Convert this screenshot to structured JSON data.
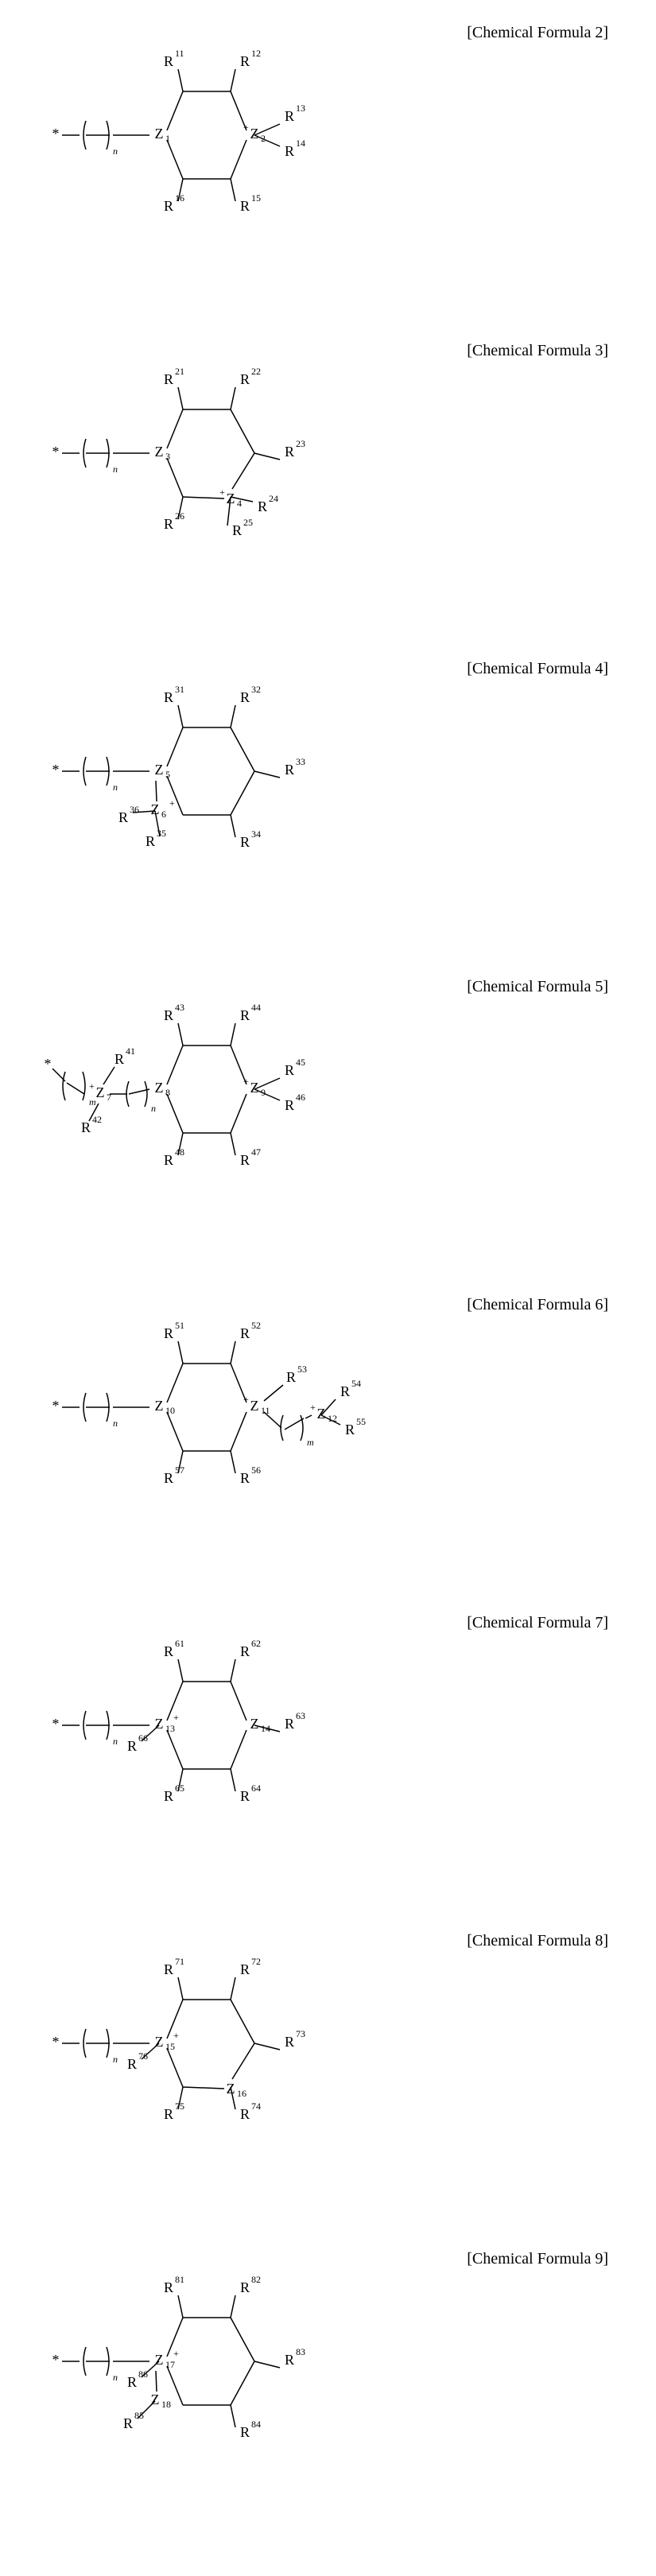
{
  "formulas": [
    {
      "label": "[Chemical Formula 2]",
      "ring": {
        "z_left": "Z",
        "z_left_sub": "1",
        "z_right": "Z",
        "z_right_sub": "2",
        "z_right_charge": "+",
        "charge_side": "left"
      },
      "chain": {
        "n": "n",
        "star": true
      },
      "r_top_left": "R",
      "r_top_left_sup": "11",
      "r_top_right": "R",
      "r_top_right_sup": "12",
      "r_right_upper": "R",
      "r_right_upper_sup": "13",
      "r_right_lower": "R",
      "r_right_lower_sup": "14",
      "r_bot_right": "R",
      "r_bot_right_sup": "15",
      "r_bot_left": "R",
      "r_bot_left_sup": "16",
      "variant": "A"
    },
    {
      "label": "[Chemical Formula 3]",
      "ring": {
        "z_left": "Z",
        "z_left_sub": "3",
        "z_bot": "Z",
        "z_bot_sub": "4",
        "z_bot_charge": "+"
      },
      "chain": {
        "n": "n",
        "star": true
      },
      "r_top_left": "R",
      "r_top_left_sup": "21",
      "r_top_right": "R",
      "r_top_right_sup": "22",
      "r_right": "R",
      "r_right_sup": "23",
      "r_bot_right1": "R",
      "r_bot_right1_sup": "24",
      "r_bot_right2": "R",
      "r_bot_right2_sup": "25",
      "r_bot_left": "R",
      "r_bot_left_sup": "26",
      "variant": "B"
    },
    {
      "label": "[Chemical Formula 4]",
      "ring": {
        "z_left": "Z",
        "z_left_sub": "5",
        "z_ext": "Z",
        "z_ext_sub": "6",
        "z_ext_charge": "+"
      },
      "chain": {
        "n": "n",
        "star": true
      },
      "r_top_left": "R",
      "r_top_left_sup": "31",
      "r_top_right": "R",
      "r_top_right_sup": "32",
      "r_right": "R",
      "r_right_sup": "33",
      "r_bot_right": "R",
      "r_bot_right_sup": "34",
      "r_ext1": "R",
      "r_ext1_sup": "35",
      "r_ext2": "R",
      "r_ext2_sup": "36",
      "variant": "C"
    },
    {
      "label": "[Chemical Formula 5]",
      "ring": {
        "z_left": "Z",
        "z_left_sub": "8",
        "z_right": "Z",
        "z_right_sub": "9",
        "z_right_charge": "+"
      },
      "prechain": {
        "z": "Z",
        "z_sub": "7",
        "z_charge": "+",
        "m": "m",
        "n": "n",
        "r_up": "R",
        "r_up_sup": "41",
        "r_down": "R",
        "r_down_sup": "42"
      },
      "r_top_left": "R",
      "r_top_left_sup": "43",
      "r_top_right": "R",
      "r_top_right_sup": "44",
      "r_right_upper": "R",
      "r_right_upper_sup": "45",
      "r_right_lower": "R",
      "r_right_lower_sup": "46",
      "r_bot_right": "R",
      "r_bot_right_sup": "47",
      "r_bot_left": "R",
      "r_bot_left_sup": "48",
      "variant": "D"
    },
    {
      "label": "[Chemical Formula 6]",
      "ring": {
        "z_left": "Z",
        "z_left_sub": "10",
        "z_right": "Z",
        "z_right_sub": "11",
        "z_right_charge": "+"
      },
      "chain": {
        "n": "n",
        "star": true
      },
      "postchain": {
        "z": "Z",
        "z_sub": "12",
        "z_charge": "+",
        "m": "m",
        "r_mid": "R",
        "r_mid_sup": "53",
        "r_up": "R",
        "r_up_sup": "54",
        "r_down": "R",
        "r_down_sup": "55"
      },
      "r_top_left": "R",
      "r_top_left_sup": "51",
      "r_top_right": "R",
      "r_top_right_sup": "52",
      "r_bot_right": "R",
      "r_bot_right_sup": "56",
      "r_bot_left": "R",
      "r_bot_left_sup": "57",
      "variant": "E"
    },
    {
      "label": "[Chemical Formula 7]",
      "ring": {
        "z_left": "Z",
        "z_left_sub": "13",
        "z_left_charge": "+",
        "z_right": "Z",
        "z_right_sub": "14"
      },
      "chain": {
        "n": "n",
        "star": true
      },
      "r_top_left": "R",
      "r_top_left_sup": "61",
      "r_top_right": "R",
      "r_top_right_sup": "62",
      "r_right": "R",
      "r_right_sup": "63",
      "r_bot_right": "R",
      "r_bot_right_sup": "64",
      "r_bot_left": "R",
      "r_bot_left_sup": "65",
      "r_left_ext": "R",
      "r_left_ext_sup": "66",
      "variant": "F"
    },
    {
      "label": "[Chemical Formula 8]",
      "ring": {
        "z_left": "Z",
        "z_left_sub": "15",
        "z_left_charge": "+",
        "z_bot": "Z",
        "z_bot_sub": "16"
      },
      "chain": {
        "n": "n",
        "star": true
      },
      "r_top_left": "R",
      "r_top_left_sup": "71",
      "r_top_right": "R",
      "r_top_right_sup": "72",
      "r_right": "R",
      "r_right_sup": "73",
      "r_bot_right": "R",
      "r_bot_right_sup": "74",
      "r_bot_left": "R",
      "r_bot_left_sup": "75",
      "r_left_ext": "R",
      "r_left_ext_sup": "76",
      "variant": "G"
    },
    {
      "label": "[Chemical Formula 9]",
      "ring": {
        "z_left": "Z",
        "z_left_sub": "17",
        "z_left_charge": "+",
        "z_ext": "Z",
        "z_ext_sub": "18"
      },
      "chain": {
        "n": "n",
        "star": true
      },
      "r_top_left": "R",
      "r_top_left_sup": "81",
      "r_top_right": "R",
      "r_top_right_sup": "82",
      "r_right": "R",
      "r_right_sup": "83",
      "r_bot_right": "R",
      "r_bot_right_sup": "84",
      "r_ext": "R",
      "r_ext_sup": "85",
      "r_left_ext": "R",
      "r_left_ext_sup": "86",
      "variant": "H"
    }
  ],
  "style": {
    "bond_color": "#000000",
    "bond_width": 1.5,
    "font": "Times New Roman",
    "atom_size": 18,
    "sub_size": 12
  }
}
